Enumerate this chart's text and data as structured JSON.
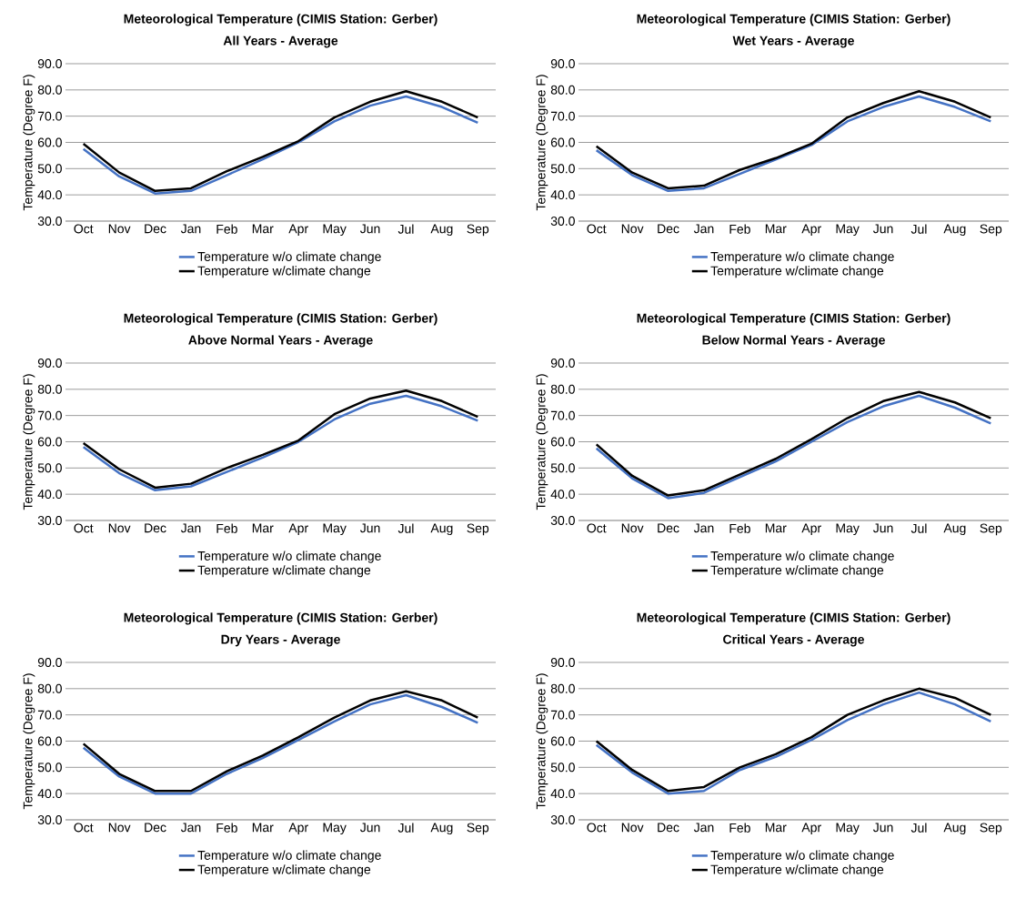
{
  "chart_data": [
    {
      "type": "line",
      "title": "Meteorological Temperature (CIMIS Station: Gerber)",
      "subtitle": "All Years - Average",
      "ylabel": "Temperature (Degree F)",
      "categories": [
        "Oct",
        "Nov",
        "Dec",
        "Jan",
        "Feb",
        "Mar",
        "Apr",
        "May",
        "Jun",
        "Jul",
        "Aug",
        "Sep"
      ],
      "ylim": [
        30,
        90
      ],
      "yticks": [
        {
          "value": 30,
          "label": "30.0"
        },
        {
          "value": 40,
          "label": "40.0"
        },
        {
          "value": 50,
          "label": "50.0"
        },
        {
          "value": 60,
          "label": "60.0"
        },
        {
          "value": 70,
          "label": "70.0"
        },
        {
          "value": 80,
          "label": "80.0"
        },
        {
          "value": 90,
          "label": "90.0"
        }
      ],
      "grid": "y",
      "legend": "bottom",
      "series": [
        {
          "name": "Temperature w/o climate change",
          "color": "#4472c4",
          "values": [
            57.5,
            47,
            40.5,
            41.5,
            47.5,
            53.5,
            60,
            68,
            74,
            77.5,
            73.5,
            67.5
          ]
        },
        {
          "name": "Temperature w/climate change",
          "color": "#000000",
          "values": [
            59.5,
            48.5,
            41.5,
            42.5,
            49,
            54.5,
            60.5,
            69.5,
            75.5,
            79.5,
            75.5,
            69.5
          ]
        }
      ]
    },
    {
      "type": "line",
      "title": "Meteorological Temperature (CIMIS Station: Gerber)",
      "subtitle": "Wet Years - Average",
      "ylabel": "Temperature (Degree F)",
      "categories": [
        "Oct",
        "Nov",
        "Dec",
        "Jan",
        "Feb",
        "Mar",
        "Apr",
        "May",
        "Jun",
        "Jul",
        "Aug",
        "Sep"
      ],
      "ylim": [
        30,
        90
      ],
      "yticks": [
        {
          "value": 30,
          "label": "30.0"
        },
        {
          "value": 40,
          "label": "40.0"
        },
        {
          "value": 50,
          "label": "50.0"
        },
        {
          "value": 60,
          "label": "60.0"
        },
        {
          "value": 70,
          "label": "70.0"
        },
        {
          "value": 80,
          "label": "80.0"
        },
        {
          "value": 90,
          "label": "90.0"
        }
      ],
      "grid": "y",
      "legend": "bottom",
      "series": [
        {
          "name": "Temperature w/o climate change",
          "color": "#4472c4",
          "values": [
            57,
            47.5,
            41.5,
            42.5,
            48,
            53.5,
            59,
            68,
            73.5,
            77.5,
            73.5,
            68
          ]
        },
        {
          "name": "Temperature w/climate change",
          "color": "#000000",
          "values": [
            58.5,
            48.5,
            42.5,
            43.5,
            49.5,
            54,
            59.5,
            69.5,
            75,
            79.5,
            75.5,
            69.5
          ]
        }
      ]
    },
    {
      "type": "line",
      "title": "Meteorological Temperature (CIMIS Station: Gerber)",
      "subtitle": "Above Normal Years - Average",
      "ylabel": "Temperature (Degree F)",
      "categories": [
        "Oct",
        "Nov",
        "Dec",
        "Jan",
        "Feb",
        "Mar",
        "Apr",
        "May",
        "Jun",
        "Jul",
        "Aug",
        "Sep"
      ],
      "ylim": [
        30,
        90
      ],
      "yticks": [
        {
          "value": 30,
          "label": "30.0"
        },
        {
          "value": 40,
          "label": "40.0"
        },
        {
          "value": 50,
          "label": "50.0"
        },
        {
          "value": 60,
          "label": "60.0"
        },
        {
          "value": 70,
          "label": "70.0"
        },
        {
          "value": 80,
          "label": "80.0"
        },
        {
          "value": 90,
          "label": "90.0"
        }
      ],
      "grid": "y",
      "legend": "bottom",
      "series": [
        {
          "name": "Temperature w/o climate change",
          "color": "#4472c4",
          "values": [
            58,
            48,
            41.5,
            43,
            48.5,
            54,
            60,
            68.5,
            74.5,
            77.5,
            73.5,
            68
          ]
        },
        {
          "name": "Temperature w/climate change",
          "color": "#000000",
          "values": [
            59.5,
            49.5,
            42.5,
            44,
            50,
            55,
            60.5,
            70.5,
            76.5,
            79.5,
            75.5,
            69.5
          ]
        }
      ]
    },
    {
      "type": "line",
      "title": "Meteorological Temperature (CIMIS Station: Gerber)",
      "subtitle": "Below Normal Years - Average",
      "ylabel": "Temperature (Degree F)",
      "categories": [
        "Oct",
        "Nov",
        "Dec",
        "Jan",
        "Feb",
        "Mar",
        "Apr",
        "May",
        "Jun",
        "Jul",
        "Aug",
        "Sep"
      ],
      "ylim": [
        30,
        90
      ],
      "yticks": [
        {
          "value": 30,
          "label": "30.0"
        },
        {
          "value": 40,
          "label": "40.0"
        },
        {
          "value": 50,
          "label": "50.0"
        },
        {
          "value": 60,
          "label": "60.0"
        },
        {
          "value": 70,
          "label": "70.0"
        },
        {
          "value": 80,
          "label": "80.0"
        },
        {
          "value": 90,
          "label": "90.0"
        }
      ],
      "grid": "y",
      "legend": "bottom",
      "series": [
        {
          "name": "Temperature w/o climate change",
          "color": "#4472c4",
          "values": [
            57.5,
            46,
            38.5,
            40.5,
            46.5,
            52.5,
            60,
            67.5,
            73.5,
            77.5,
            73,
            67
          ]
        },
        {
          "name": "Temperature w/climate change",
          "color": "#000000",
          "values": [
            59,
            47,
            39.5,
            41.5,
            47.5,
            53.5,
            61,
            69,
            75.5,
            79,
            75,
            69
          ]
        }
      ]
    },
    {
      "type": "line",
      "title": "Meteorological Temperature (CIMIS Station: Gerber)",
      "subtitle": "Dry Years - Average",
      "ylabel": "Temperature (Degree F)",
      "categories": [
        "Oct",
        "Nov",
        "Dec",
        "Jan",
        "Feb",
        "Mar",
        "Apr",
        "May",
        "Jun",
        "Jul",
        "Aug",
        "Sep"
      ],
      "ylim": [
        30,
        90
      ],
      "yticks": [
        {
          "value": 30,
          "label": "30.0"
        },
        {
          "value": 40,
          "label": "40.0"
        },
        {
          "value": 50,
          "label": "50.0"
        },
        {
          "value": 60,
          "label": "60.0"
        },
        {
          "value": 70,
          "label": "70.0"
        },
        {
          "value": 80,
          "label": "80.0"
        },
        {
          "value": 90,
          "label": "90.0"
        }
      ],
      "grid": "y",
      "legend": "bottom",
      "series": [
        {
          "name": "Temperature w/o climate change",
          "color": "#4472c4",
          "values": [
            57.5,
            46.5,
            40,
            40,
            47.5,
            53.5,
            60.5,
            67.5,
            74,
            77.5,
            73,
            67
          ]
        },
        {
          "name": "Temperature w/climate change",
          "color": "#000000",
          "values": [
            59,
            47.5,
            41,
            41,
            48.5,
            54.5,
            61.5,
            69,
            75.5,
            79,
            75.5,
            69
          ]
        }
      ]
    },
    {
      "type": "line",
      "title": "Meteorological Temperature (CIMIS Station: Gerber)",
      "subtitle": "Critical Years - Average",
      "ylabel": "Temperature (Degree F)",
      "categories": [
        "Oct",
        "Nov",
        "Dec",
        "Jan",
        "Feb",
        "Mar",
        "Apr",
        "May",
        "Jun",
        "Jul",
        "Aug",
        "Sep"
      ],
      "ylim": [
        30,
        90
      ],
      "yticks": [
        {
          "value": 30,
          "label": "30.0"
        },
        {
          "value": 40,
          "label": "40.0"
        },
        {
          "value": 50,
          "label": "50.0"
        },
        {
          "value": 60,
          "label": "60.0"
        },
        {
          "value": 70,
          "label": "70.0"
        },
        {
          "value": 80,
          "label": "80.0"
        },
        {
          "value": 90,
          "label": "90.0"
        }
      ],
      "grid": "y",
      "legend": "bottom",
      "series": [
        {
          "name": "Temperature w/o climate change",
          "color": "#4472c4",
          "values": [
            58.5,
            48,
            40,
            41,
            49,
            54,
            60.5,
            68,
            74,
            78.5,
            74,
            67.5
          ]
        },
        {
          "name": "Temperature w/climate change",
          "color": "#000000",
          "values": [
            60,
            49,
            41,
            42.5,
            50,
            55,
            61.5,
            70,
            75.5,
            80,
            76.5,
            70
          ]
        }
      ]
    }
  ]
}
